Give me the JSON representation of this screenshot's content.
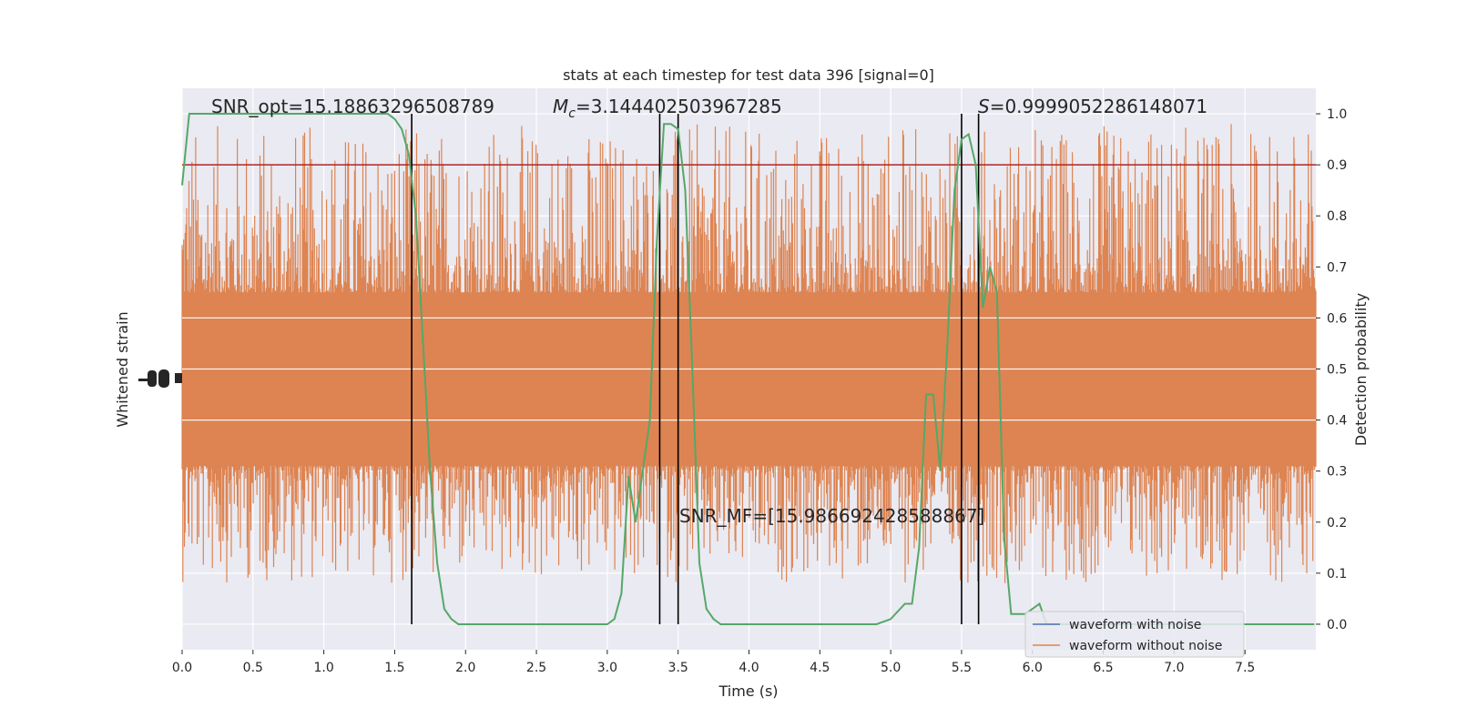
{
  "chart_data": {
    "type": "line",
    "title": "stats at each timestep for test data 396 [signal=0]",
    "xlabel": "Time (s)",
    "ylabel_left": "Whitened strain",
    "ylabel_right": "Detection probability",
    "xlim": [
      0,
      8
    ],
    "ylim_right": [
      -0.05,
      1.05
    ],
    "grid": true,
    "x_ticks": [
      0.0,
      0.5,
      1.0,
      1.5,
      2.0,
      2.5,
      3.0,
      3.5,
      4.0,
      4.5,
      5.0,
      5.5,
      6.0,
      6.5,
      7.0,
      7.5
    ],
    "x_tick_labels": [
      "0.0",
      "0.5",
      "1.0",
      "1.5",
      "2.0",
      "2.5",
      "3.0",
      "3.5",
      "4.0",
      "4.5",
      "5.0",
      "5.5",
      "6.0",
      "6.5",
      "7.0",
      "7.5"
    ],
    "y_right_ticks": [
      0.0,
      0.1,
      0.2,
      0.3,
      0.4,
      0.5,
      0.6,
      0.7,
      0.8,
      0.9,
      1.0
    ],
    "y_right_tick_labels": [
      "0.0",
      "0.1",
      "0.2",
      "0.3",
      "0.4",
      "0.5",
      "0.6",
      "0.7",
      "0.8",
      "0.9",
      "1.0"
    ],
    "threshold": 0.9,
    "vertical_lines": [
      1.62,
      3.37,
      3.5,
      5.5,
      5.62
    ],
    "annotations": {
      "snr_opt": "SNR_opt=15.18863296508789",
      "mc_symbol": "M",
      "mc_sub": "c",
      "mc_value": "=3.144402503967285",
      "s_symbol": "S",
      "s_value": "=0.9999052286148071",
      "snr_mf": "SNR_MF=[15.986692428588867]"
    },
    "legend": {
      "placement": "lower-right",
      "entries": [
        "waveform with noise",
        "waveform without noise"
      ]
    },
    "series": [
      {
        "name": "waveform with noise",
        "color": "#4c72b0",
        "note_values": "hidden behind orange noise band"
      },
      {
        "name": "waveform without noise",
        "color": "#dd8452",
        "band_center": 0.48,
        "band_half_width": 0.17,
        "spike_upper_max": 0.98,
        "spike_lower_min": 0.08
      },
      {
        "color": "#55a868",
        "x": [
          0.0,
          0.05,
          0.1,
          0.2,
          0.3,
          0.5,
          0.7,
          1.0,
          1.2,
          1.35,
          1.45,
          1.5,
          1.55,
          1.6,
          1.65,
          1.7,
          1.75,
          1.8,
          1.85,
          1.9,
          1.95,
          2.0,
          2.1,
          2.3,
          2.6,
          2.8,
          3.0,
          3.05,
          3.1,
          3.15,
          3.2,
          3.25,
          3.3,
          3.35,
          3.4,
          3.45,
          3.5,
          3.55,
          3.6,
          3.65,
          3.7,
          3.75,
          3.8,
          3.85,
          4.0,
          4.5,
          4.9,
          5.0,
          5.1,
          5.15,
          5.2,
          5.25,
          5.3,
          5.35,
          5.4,
          5.45,
          5.5,
          5.55,
          5.6,
          5.65,
          5.7,
          5.75,
          5.8,
          5.85,
          5.9,
          5.95,
          6.0,
          6.05,
          6.1,
          6.15,
          6.2,
          6.25,
          6.3,
          6.5,
          7.0,
          7.15,
          7.2,
          7.25,
          7.3,
          7.35,
          7.4,
          7.45,
          7.5,
          7.55,
          7.6,
          7.8,
          7.99
        ],
        "y": [
          0.86,
          1.0,
          1.0,
          1.0,
          1.0,
          1.0,
          1.0,
          1.0,
          1.0,
          1.0,
          1.0,
          0.99,
          0.97,
          0.92,
          0.8,
          0.55,
          0.3,
          0.12,
          0.03,
          0.01,
          0.0,
          0.0,
          0.0,
          0.0,
          0.0,
          0.0,
          0.0,
          0.01,
          0.06,
          0.29,
          0.2,
          0.3,
          0.4,
          0.75,
          0.98,
          0.98,
          0.97,
          0.85,
          0.5,
          0.12,
          0.03,
          0.01,
          0.0,
          0.0,
          0.0,
          0.0,
          0.0,
          0.01,
          0.04,
          0.04,
          0.15,
          0.45,
          0.45,
          0.3,
          0.55,
          0.85,
          0.95,
          0.96,
          0.9,
          0.62,
          0.7,
          0.65,
          0.17,
          0.02,
          0.02,
          0.02,
          0.03,
          0.04,
          0.0,
          0.0,
          0.0,
          0.0,
          0.0,
          0.0,
          0.0,
          0.0,
          0.0,
          0.0,
          0.0,
          0.0,
          0.0,
          0.0,
          0.0,
          0.0,
          0.0,
          0.0,
          0.0
        ]
      }
    ]
  }
}
